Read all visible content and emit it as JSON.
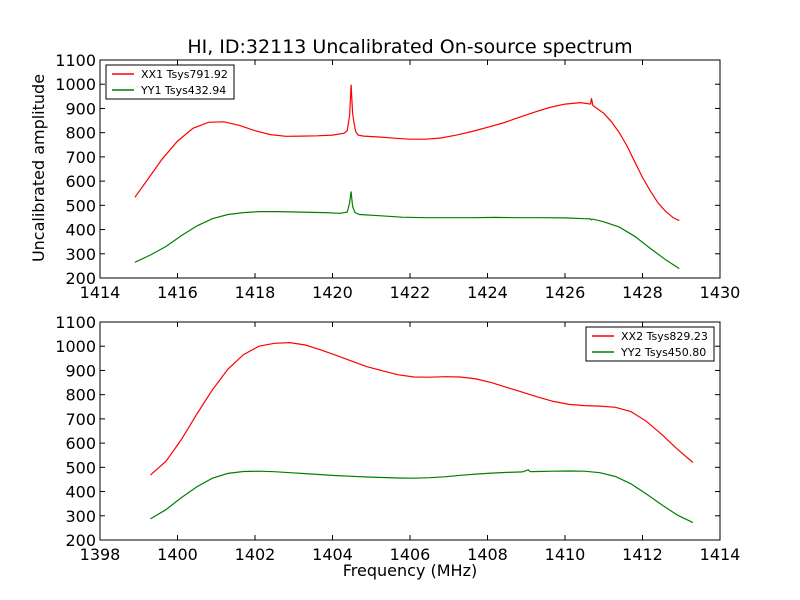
{
  "figure": {
    "title": "HI, ID:32113 Uncalibrated On-source spectrum",
    "ylabel": "Uncalibrated amplitude",
    "xlabel": "Frequency (MHz)"
  },
  "chart_data": [
    {
      "type": "line",
      "title": "HI, ID:32113 Uncalibrated On-source spectrum",
      "xlabel": "",
      "ylabel": "Uncalibrated amplitude",
      "xlim": [
        1414,
        1430
      ],
      "ylim": [
        200,
        1100
      ],
      "xticks": [
        1414,
        1416,
        1418,
        1420,
        1422,
        1424,
        1426,
        1428,
        1430
      ],
      "yticks": [
        200,
        300,
        400,
        500,
        600,
        700,
        800,
        900,
        1000,
        1100
      ],
      "grid": false,
      "legend_position": "top-left",
      "series": [
        {
          "name": "XX1 Tsys791.92",
          "color": "#ff0000",
          "x": [
            1414.9,
            1415.2,
            1415.6,
            1416.0,
            1416.4,
            1416.8,
            1417.2,
            1417.6,
            1418.0,
            1418.4,
            1418.8,
            1419.2,
            1419.6,
            1420.0,
            1420.3,
            1420.38,
            1420.44,
            1420.48,
            1420.52,
            1420.56,
            1420.6,
            1420.66,
            1420.8,
            1421.2,
            1421.6,
            1422.0,
            1422.4,
            1422.8,
            1423.2,
            1423.6,
            1424.0,
            1424.4,
            1424.8,
            1425.2,
            1425.6,
            1426.0,
            1426.4,
            1426.66,
            1426.68,
            1426.72,
            1426.8,
            1427.0,
            1427.2,
            1427.4,
            1427.6,
            1427.8,
            1428.0,
            1428.2,
            1428.4,
            1428.6,
            1428.8,
            1428.95
          ],
          "values": [
            533,
            600,
            690,
            765,
            818,
            843,
            845,
            830,
            808,
            792,
            785,
            786,
            787,
            790,
            798,
            808,
            870,
            998,
            880,
            835,
            805,
            790,
            786,
            782,
            777,
            773,
            773,
            778,
            790,
            805,
            822,
            840,
            862,
            884,
            904,
            918,
            924,
            918,
            942,
            912,
            903,
            880,
            845,
            800,
            745,
            680,
            615,
            560,
            510,
            475,
            448,
            437
          ]
        },
        {
          "name": "YY1 Tsys432.94",
          "color": "#008000",
          "x": [
            1414.9,
            1415.3,
            1415.7,
            1416.1,
            1416.5,
            1416.9,
            1417.3,
            1417.7,
            1418.1,
            1418.6,
            1419.2,
            1419.8,
            1420.2,
            1420.38,
            1420.44,
            1420.48,
            1420.52,
            1420.58,
            1420.7,
            1421.2,
            1421.8,
            1422.4,
            1423.0,
            1423.6,
            1424.2,
            1424.8,
            1425.4,
            1426.0,
            1426.5,
            1426.66,
            1426.68,
            1426.72,
            1427.0,
            1427.4,
            1427.8,
            1428.2,
            1428.6,
            1428.95
          ],
          "values": [
            265,
            295,
            330,
            375,
            415,
            445,
            462,
            470,
            474,
            474,
            472,
            470,
            467,
            472,
            510,
            557,
            495,
            470,
            462,
            457,
            451,
            449,
            449,
            449,
            450,
            449,
            449,
            448,
            445,
            444,
            440,
            443,
            432,
            410,
            372,
            322,
            275,
            239
          ]
        }
      ]
    },
    {
      "type": "line",
      "title": "",
      "xlabel": "Frequency (MHz)",
      "ylabel": "",
      "xlim": [
        1398,
        1414
      ],
      "ylim": [
        200,
        1100
      ],
      "xticks": [
        1398,
        1400,
        1402,
        1404,
        1406,
        1408,
        1410,
        1412,
        1414
      ],
      "yticks": [
        200,
        300,
        400,
        500,
        600,
        700,
        800,
        900,
        1000,
        1100
      ],
      "grid": false,
      "legend_position": "top-right",
      "series": [
        {
          "name": "XX2 Tsys829.23",
          "color": "#ff0000",
          "x": [
            1399.3,
            1399.7,
            1400.1,
            1400.5,
            1400.9,
            1401.3,
            1401.7,
            1402.1,
            1402.5,
            1402.9,
            1403.3,
            1403.7,
            1404.1,
            1404.5,
            1404.9,
            1405.3,
            1405.7,
            1406.1,
            1406.5,
            1406.9,
            1407.3,
            1407.7,
            1408.1,
            1408.5,
            1408.9,
            1409.3,
            1409.7,
            1410.1,
            1410.5,
            1410.9,
            1411.3,
            1411.7,
            1412.1,
            1412.5,
            1412.9,
            1413.3
          ],
          "values": [
            468,
            525,
            615,
            720,
            820,
            905,
            965,
            1000,
            1012,
            1015,
            1005,
            985,
            962,
            938,
            915,
            898,
            882,
            873,
            872,
            874,
            873,
            865,
            850,
            830,
            810,
            790,
            772,
            760,
            755,
            753,
            748,
            730,
            690,
            635,
            575,
            520
          ]
        },
        {
          "name": "YY2 Tsys450.80",
          "color": "#008000",
          "x": [
            1399.3,
            1399.7,
            1400.1,
            1400.5,
            1400.9,
            1401.3,
            1401.7,
            1402.1,
            1402.5,
            1402.9,
            1403.3,
            1403.7,
            1404.1,
            1404.5,
            1404.9,
            1405.3,
            1405.7,
            1406.1,
            1406.5,
            1406.9,
            1407.3,
            1407.7,
            1408.1,
            1408.5,
            1408.9,
            1409.05,
            1409.1,
            1409.3,
            1409.7,
            1410.1,
            1410.5,
            1410.9,
            1411.3,
            1411.7,
            1412.1,
            1412.5,
            1412.9,
            1413.3
          ],
          "values": [
            287,
            325,
            375,
            420,
            455,
            475,
            483,
            484,
            482,
            478,
            474,
            470,
            466,
            463,
            460,
            458,
            456,
            455,
            457,
            461,
            467,
            472,
            476,
            479,
            481,
            490,
            482,
            483,
            484,
            485,
            484,
            478,
            462,
            432,
            390,
            345,
            303,
            272
          ]
        }
      ]
    }
  ]
}
